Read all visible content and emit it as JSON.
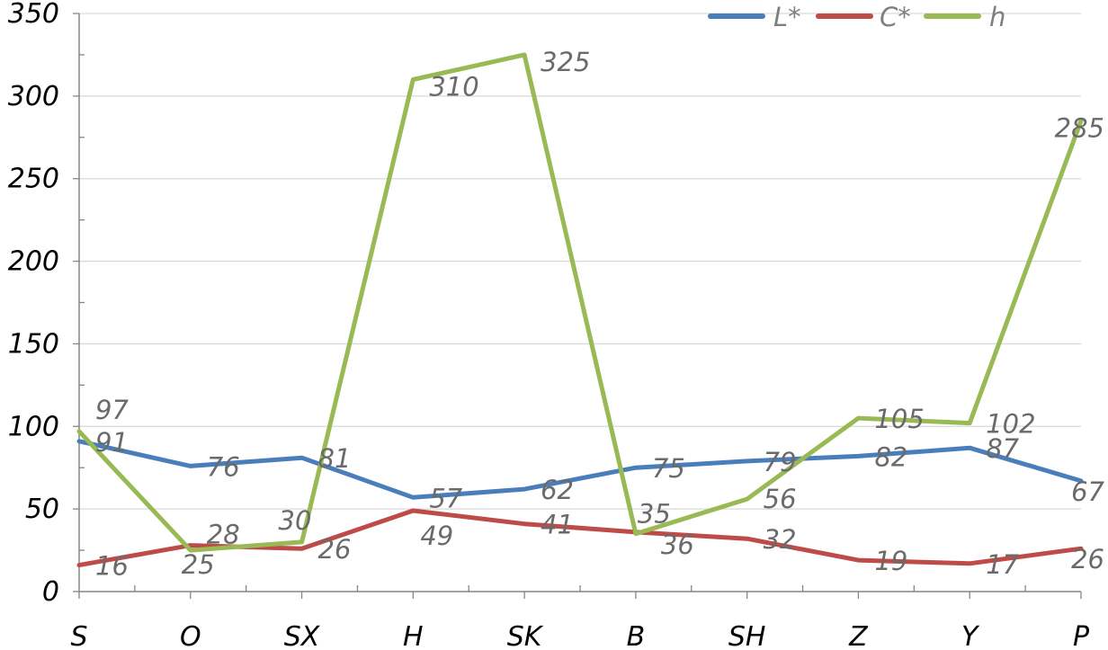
{
  "chart_data": {
    "type": "line",
    "categories": [
      "S",
      "O",
      "SX",
      "H",
      "SK",
      "B",
      "SH",
      "Z",
      "Y",
      "P"
    ],
    "ylim": [
      0,
      350
    ],
    "yticks": [
      0,
      50,
      100,
      150,
      200,
      250,
      300,
      350
    ],
    "grid": "horizontal",
    "legend_position": "top-right",
    "series": [
      {
        "name": "L*",
        "color": "#4a7ebb",
        "values": [
          91,
          76,
          81,
          57,
          62,
          75,
          79,
          82,
          87,
          67
        ]
      },
      {
        "name": "C*",
        "color": "#be4b48",
        "values": [
          16,
          28,
          26,
          49,
          41,
          36,
          32,
          19,
          17,
          26
        ]
      },
      {
        "name": "h",
        "color": "#98b954",
        "values": [
          97,
          25,
          30,
          310,
          325,
          35,
          56,
          105,
          102,
          285
        ]
      }
    ]
  }
}
